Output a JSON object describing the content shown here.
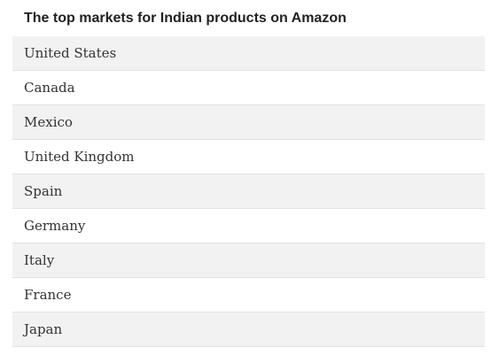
{
  "table": {
    "title": "The top markets for Indian products on Amazon",
    "rows": [
      "United States",
      "Canada",
      "Mexico",
      "United Kingdom",
      "Spain",
      "Germany",
      "Italy",
      "France",
      "Japan"
    ]
  },
  "colors": {
    "shaded_row": "#f2f2f2",
    "plain_row": "#ffffff",
    "divider": "#e2e2e2"
  }
}
